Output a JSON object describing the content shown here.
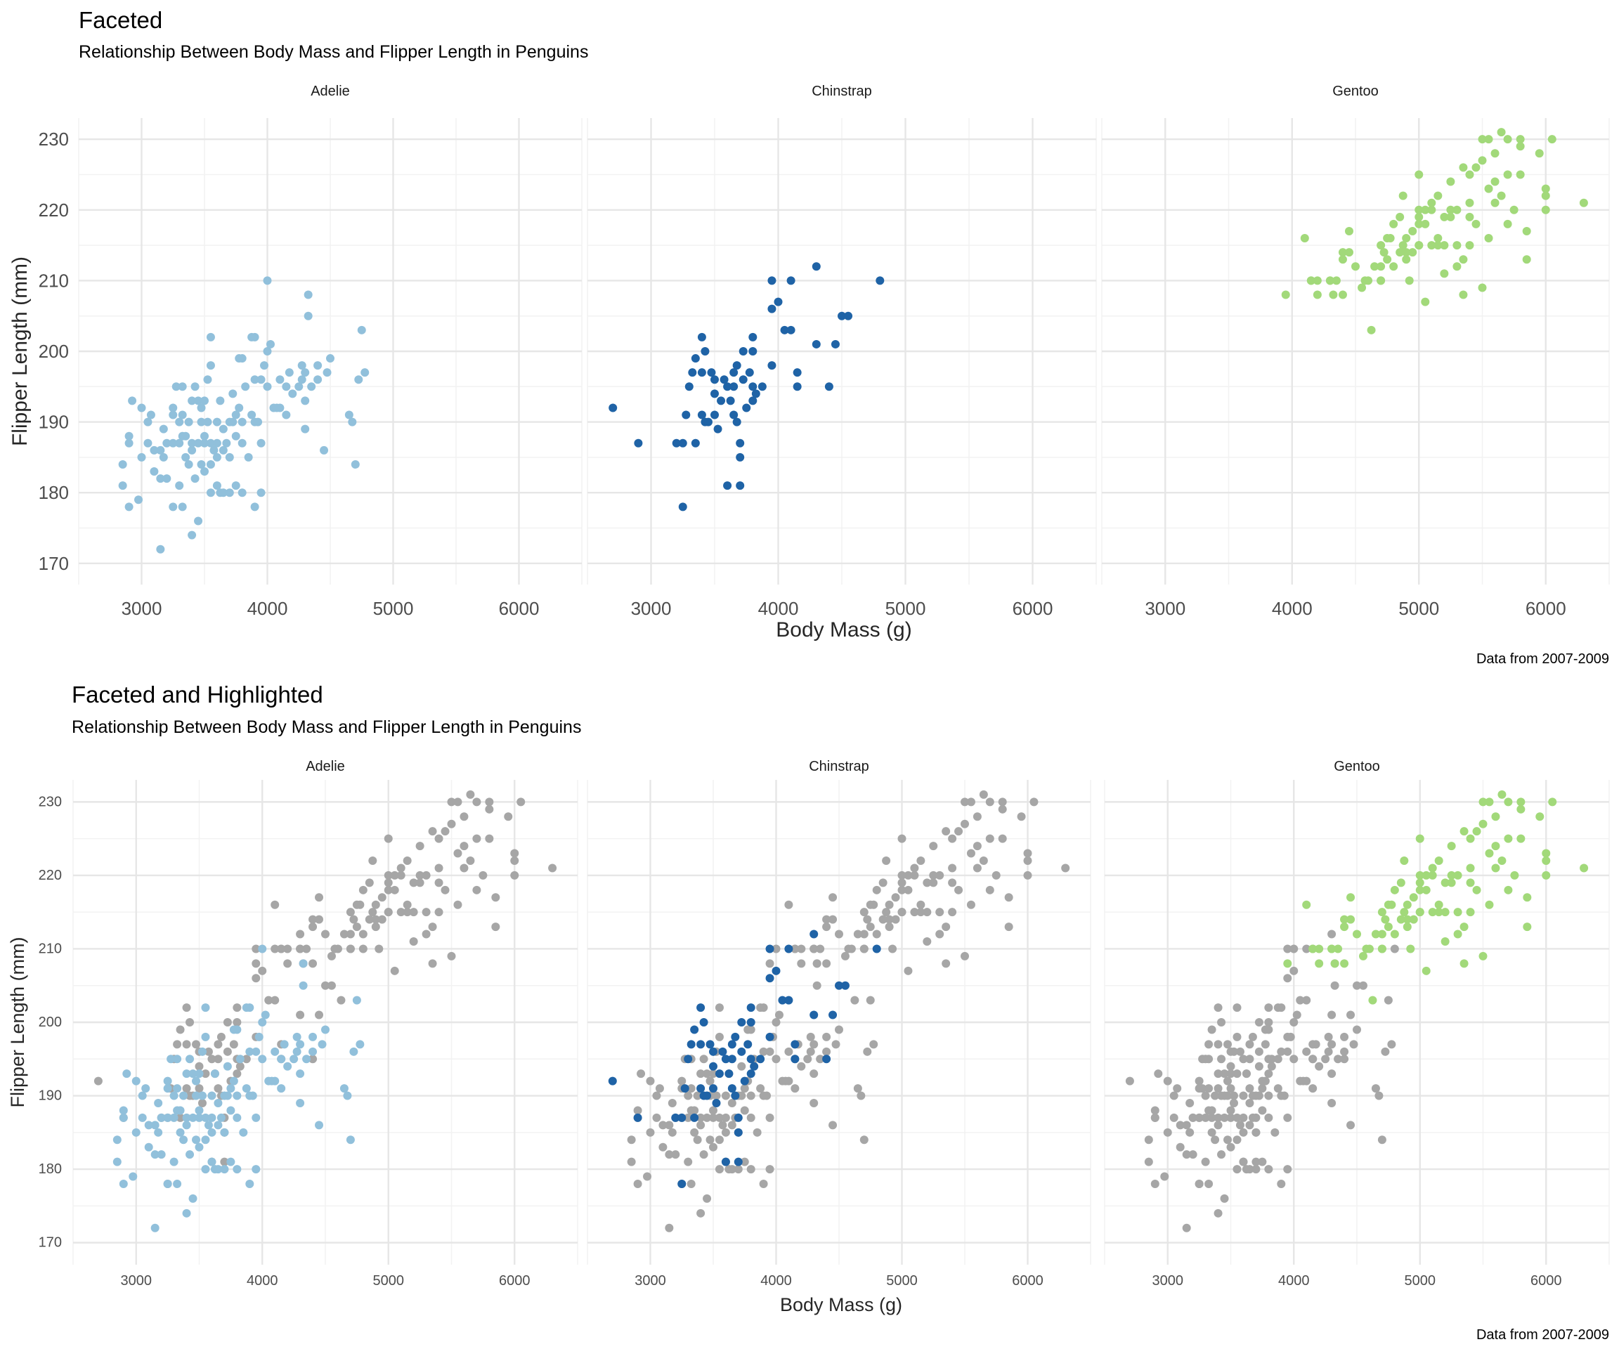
{
  "chart_data": [
    {
      "type": "scatter",
      "title": "Faceted",
      "subtitle": "Relationship Between Body Mass and Flipper Length in Penguins",
      "caption": "Data from 2007-2009",
      "xlabel": "Body Mass (g)",
      "ylabel": "Flipper Length (mm)",
      "xlim": [
        2500,
        6500
      ],
      "ylim": [
        167,
        233
      ],
      "xticks": [
        3000,
        4000,
        5000,
        6000
      ],
      "yticks": [
        170,
        180,
        190,
        200,
        210,
        220,
        230
      ],
      "grid": true,
      "legend": "none",
      "highlight": false,
      "facets": [
        "Adelie",
        "Chinstrap",
        "Gentoo"
      ]
    },
    {
      "type": "scatter",
      "title": "Faceted and Highlighted",
      "subtitle": "Relationship Between Body Mass and Flipper Length in Penguins",
      "caption": "Data from 2007-2009",
      "xlabel": "Body Mass (g)",
      "ylabel": "Flipper Length (mm)",
      "xlim": [
        2500,
        6500
      ],
      "ylim": [
        167,
        233
      ],
      "xticks": [
        3000,
        4000,
        5000,
        6000
      ],
      "yticks": [
        170,
        180,
        190,
        200,
        210,
        220,
        230
      ],
      "grid": true,
      "legend": "none",
      "highlight": true,
      "other_color": "#a6a6a6",
      "facets": [
        "Adelie",
        "Chinstrap",
        "Gentoo"
      ]
    }
  ],
  "species": [
    {
      "name": "Adelie",
      "color": "#91c0db",
      "points": [
        [
          2850,
          181
        ],
        [
          2850,
          184
        ],
        [
          2900,
          178
        ],
        [
          2900,
          187
        ],
        [
          2900,
          188
        ],
        [
          2925,
          193
        ],
        [
          2975,
          179
        ],
        [
          3000,
          185
        ],
        [
          3000,
          192
        ],
        [
          3050,
          187
        ],
        [
          3050,
          190
        ],
        [
          3075,
          191
        ],
        [
          3100,
          183
        ],
        [
          3100,
          186
        ],
        [
          3150,
          172
        ],
        [
          3150,
          182
        ],
        [
          3150,
          186
        ],
        [
          3175,
          185
        ],
        [
          3175,
          189
        ],
        [
          3200,
          182
        ],
        [
          3200,
          187
        ],
        [
          3250,
          178
        ],
        [
          3250,
          187
        ],
        [
          3250,
          191
        ],
        [
          3250,
          192
        ],
        [
          3275,
          195
        ],
        [
          3300,
          181
        ],
        [
          3300,
          187
        ],
        [
          3300,
          190
        ],
        [
          3325,
          188
        ],
        [
          3325,
          191
        ],
        [
          3325,
          195
        ],
        [
          3350,
          185
        ],
        [
          3350,
          188
        ],
        [
          3375,
          184
        ],
        [
          3375,
          190
        ],
        [
          3400,
          174
        ],
        [
          3400,
          186
        ],
        [
          3400,
          187
        ],
        [
          3400,
          193
        ],
        [
          3425,
          182
        ],
        [
          3425,
          195
        ],
        [
          3450,
          176
        ],
        [
          3450,
          187
        ],
        [
          3450,
          193
        ],
        [
          3475,
          184
        ],
        [
          3475,
          192
        ],
        [
          3500,
          183
        ],
        [
          3500,
          187
        ],
        [
          3500,
          188
        ],
        [
          3500,
          193
        ],
        [
          3525,
          190
        ],
        [
          3525,
          196
        ],
        [
          3550,
          180
        ],
        [
          3550,
          184
        ],
        [
          3550,
          187
        ],
        [
          3550,
          198
        ],
        [
          3575,
          186
        ],
        [
          3600,
          181
        ],
        [
          3600,
          185
        ],
        [
          3600,
          187
        ],
        [
          3600,
          190
        ],
        [
          3625,
          180
        ],
        [
          3625,
          193
        ],
        [
          3650,
          180
        ],
        [
          3650,
          186
        ],
        [
          3650,
          189
        ],
        [
          3675,
          187
        ],
        [
          3700,
          180
        ],
        [
          3700,
          185
        ],
        [
          3700,
          190
        ],
        [
          3725,
          190
        ],
        [
          3725,
          194
        ],
        [
          3750,
          181
        ],
        [
          3750,
          188
        ],
        [
          3750,
          191
        ],
        [
          3775,
          192
        ],
        [
          3775,
          199
        ],
        [
          3800,
          180
        ],
        [
          3800,
          187
        ],
        [
          3800,
          190
        ],
        [
          3800,
          199
        ],
        [
          3825,
          195
        ],
        [
          3850,
          185
        ],
        [
          3875,
          191
        ],
        [
          3900,
          178
        ],
        [
          3900,
          190
        ],
        [
          3900,
          196
        ],
        [
          3900,
          202
        ],
        [
          3925,
          190
        ],
        [
          3950,
          180
        ],
        [
          3950,
          187
        ],
        [
          3950,
          196
        ],
        [
          3975,
          198
        ],
        [
          4000,
          195
        ],
        [
          4000,
          200
        ],
        [
          4000,
          210
        ],
        [
          4025,
          201
        ],
        [
          4050,
          192
        ],
        [
          4075,
          192
        ],
        [
          4100,
          192
        ],
        [
          4100,
          196
        ],
        [
          4150,
          191
        ],
        [
          4150,
          195
        ],
        [
          4175,
          197
        ],
        [
          4200,
          194
        ],
        [
          4250,
          195
        ],
        [
          4275,
          196
        ],
        [
          4300,
          189
        ],
        [
          4300,
          193
        ],
        [
          4300,
          197
        ],
        [
          4325,
          205
        ],
        [
          4325,
          208
        ],
        [
          4350,
          195
        ],
        [
          4400,
          196
        ],
        [
          4400,
          198
        ],
        [
          4450,
          186
        ],
        [
          4475,
          197
        ],
        [
          4500,
          199
        ],
        [
          4650,
          191
        ],
        [
          4675,
          190
        ],
        [
          4700,
          184
        ],
        [
          4725,
          196
        ],
        [
          4750,
          203
        ],
        [
          4775,
          197
        ],
        [
          3325,
          178
        ],
        [
          3550,
          202
        ],
        [
          3875,
          202
        ],
        [
          4275,
          198
        ],
        [
          3475,
          190
        ]
      ]
    },
    {
      "name": "Chinstrap",
      "color": "#1f63a6",
      "points": [
        [
          2700,
          192
        ],
        [
          2900,
          187
        ],
        [
          3200,
          187
        ],
        [
          3250,
          178
        ],
        [
          3250,
          187
        ],
        [
          3275,
          191
        ],
        [
          3300,
          195
        ],
        [
          3325,
          197
        ],
        [
          3350,
          187
        ],
        [
          3350,
          199
        ],
        [
          3400,
          191
        ],
        [
          3400,
          202
        ],
        [
          3425,
          190
        ],
        [
          3425,
          200
        ],
        [
          3450,
          190
        ],
        [
          3475,
          197
        ],
        [
          3500,
          194
        ],
        [
          3500,
          196
        ],
        [
          3525,
          189
        ],
        [
          3550,
          193
        ],
        [
          3575,
          196
        ],
        [
          3600,
          181
        ],
        [
          3600,
          195
        ],
        [
          3625,
          193
        ],
        [
          3650,
          195
        ],
        [
          3650,
          197
        ],
        [
          3675,
          190
        ],
        [
          3675,
          198
        ],
        [
          3700,
          185
        ],
        [
          3700,
          181
        ],
        [
          3700,
          187
        ],
        [
          3725,
          196
        ],
        [
          3750,
          192
        ],
        [
          3775,
          197
        ],
        [
          3800,
          193
        ],
        [
          3800,
          200
        ],
        [
          3800,
          202
        ],
        [
          3825,
          194
        ],
        [
          3875,
          195
        ],
        [
          3950,
          198
        ],
        [
          3950,
          206
        ],
        [
          3950,
          210
        ],
        [
          4000,
          207
        ],
        [
          4050,
          203
        ],
        [
          4100,
          203
        ],
        [
          4100,
          210
        ],
        [
          4150,
          195
        ],
        [
          4150,
          197
        ],
        [
          4300,
          201
        ],
        [
          4300,
          212
        ],
        [
          4400,
          195
        ],
        [
          4450,
          201
        ],
        [
          4500,
          205
        ],
        [
          4550,
          205
        ],
        [
          4800,
          210
        ],
        [
          3800,
          195
        ],
        [
          3725,
          200
        ],
        [
          3400,
          197
        ],
        [
          3500,
          191
        ],
        [
          3650,
          191
        ]
      ]
    },
    {
      "name": "Gentoo",
      "color": "#a2d97a",
      "points": [
        [
          3950,
          208
        ],
        [
          4100,
          216
        ],
        [
          4150,
          210
        ],
        [
          4200,
          210
        ],
        [
          4200,
          208
        ],
        [
          4300,
          210
        ],
        [
          4325,
          208
        ],
        [
          4350,
          210
        ],
        [
          4400,
          214
        ],
        [
          4400,
          213
        ],
        [
          4400,
          208
        ],
        [
          4450,
          217
        ],
        [
          4500,
          212
        ],
        [
          4550,
          209
        ],
        [
          4575,
          210
        ],
        [
          4600,
          210
        ],
        [
          4625,
          203
        ],
        [
          4650,
          212
        ],
        [
          4700,
          212
        ],
        [
          4700,
          210
        ],
        [
          4700,
          215
        ],
        [
          4725,
          214
        ],
        [
          4750,
          213
        ],
        [
          4750,
          216
        ],
        [
          4775,
          216
        ],
        [
          4800,
          218
        ],
        [
          4850,
          214
        ],
        [
          4850,
          219
        ],
        [
          4875,
          215
        ],
        [
          4900,
          213
        ],
        [
          4900,
          216
        ],
        [
          4925,
          210
        ],
        [
          4950,
          214
        ],
        [
          4950,
          217
        ],
        [
          5000,
          218
        ],
        [
          5000,
          219
        ],
        [
          5000,
          215
        ],
        [
          5000,
          220
        ],
        [
          5000,
          225
        ],
        [
          5050,
          220
        ],
        [
          5050,
          207
        ],
        [
          5100,
          221
        ],
        [
          5100,
          215
        ],
        [
          5150,
          215
        ],
        [
          5200,
          215
        ],
        [
          5200,
          219
        ],
        [
          5250,
          224
        ],
        [
          5250,
          219
        ],
        [
          5300,
          220
        ],
        [
          5300,
          215
        ],
        [
          5350,
          208
        ],
        [
          5350,
          213
        ],
        [
          5400,
          215
        ],
        [
          5400,
          221
        ],
        [
          5400,
          225
        ],
        [
          5450,
          218
        ],
        [
          5500,
          209
        ],
        [
          5500,
          230
        ],
        [
          5550,
          216
        ],
        [
          5550,
          230
        ],
        [
          5600,
          224
        ],
        [
          5600,
          228
        ],
        [
          5650,
          231
        ],
        [
          5650,
          222
        ],
        [
          5700,
          225
        ],
        [
          5700,
          230
        ],
        [
          5750,
          220
        ],
        [
          5800,
          229
        ],
        [
          5800,
          230
        ],
        [
          5850,
          217
        ],
        [
          5850,
          213
        ],
        [
          5950,
          228
        ],
        [
          6000,
          223
        ],
        [
          6000,
          220
        ],
        [
          6050,
          230
        ],
        [
          6300,
          221
        ],
        [
          5200,
          211
        ],
        [
          5300,
          212
        ],
        [
          4875,
          222
        ],
        [
          5100,
          220
        ],
        [
          5150,
          222
        ],
        [
          5000,
          215
        ],
        [
          4900,
          214
        ],
        [
          5350,
          226
        ],
        [
          5550,
          223
        ],
        [
          5700,
          218
        ],
        [
          5400,
          219
        ],
        [
          5600,
          221
        ],
        [
          4300,
          210
        ],
        [
          4450,
          214
        ],
        [
          4700,
          210
        ],
        [
          5250,
          220
        ],
        [
          5450,
          226
        ],
        [
          5800,
          225
        ],
        [
          6000,
          222
        ],
        [
          4150,
          210
        ],
        [
          5500,
          227
        ],
        [
          4800,
          212
        ],
        [
          5050,
          218
        ],
        [
          5150,
          216
        ]
      ]
    }
  ]
}
